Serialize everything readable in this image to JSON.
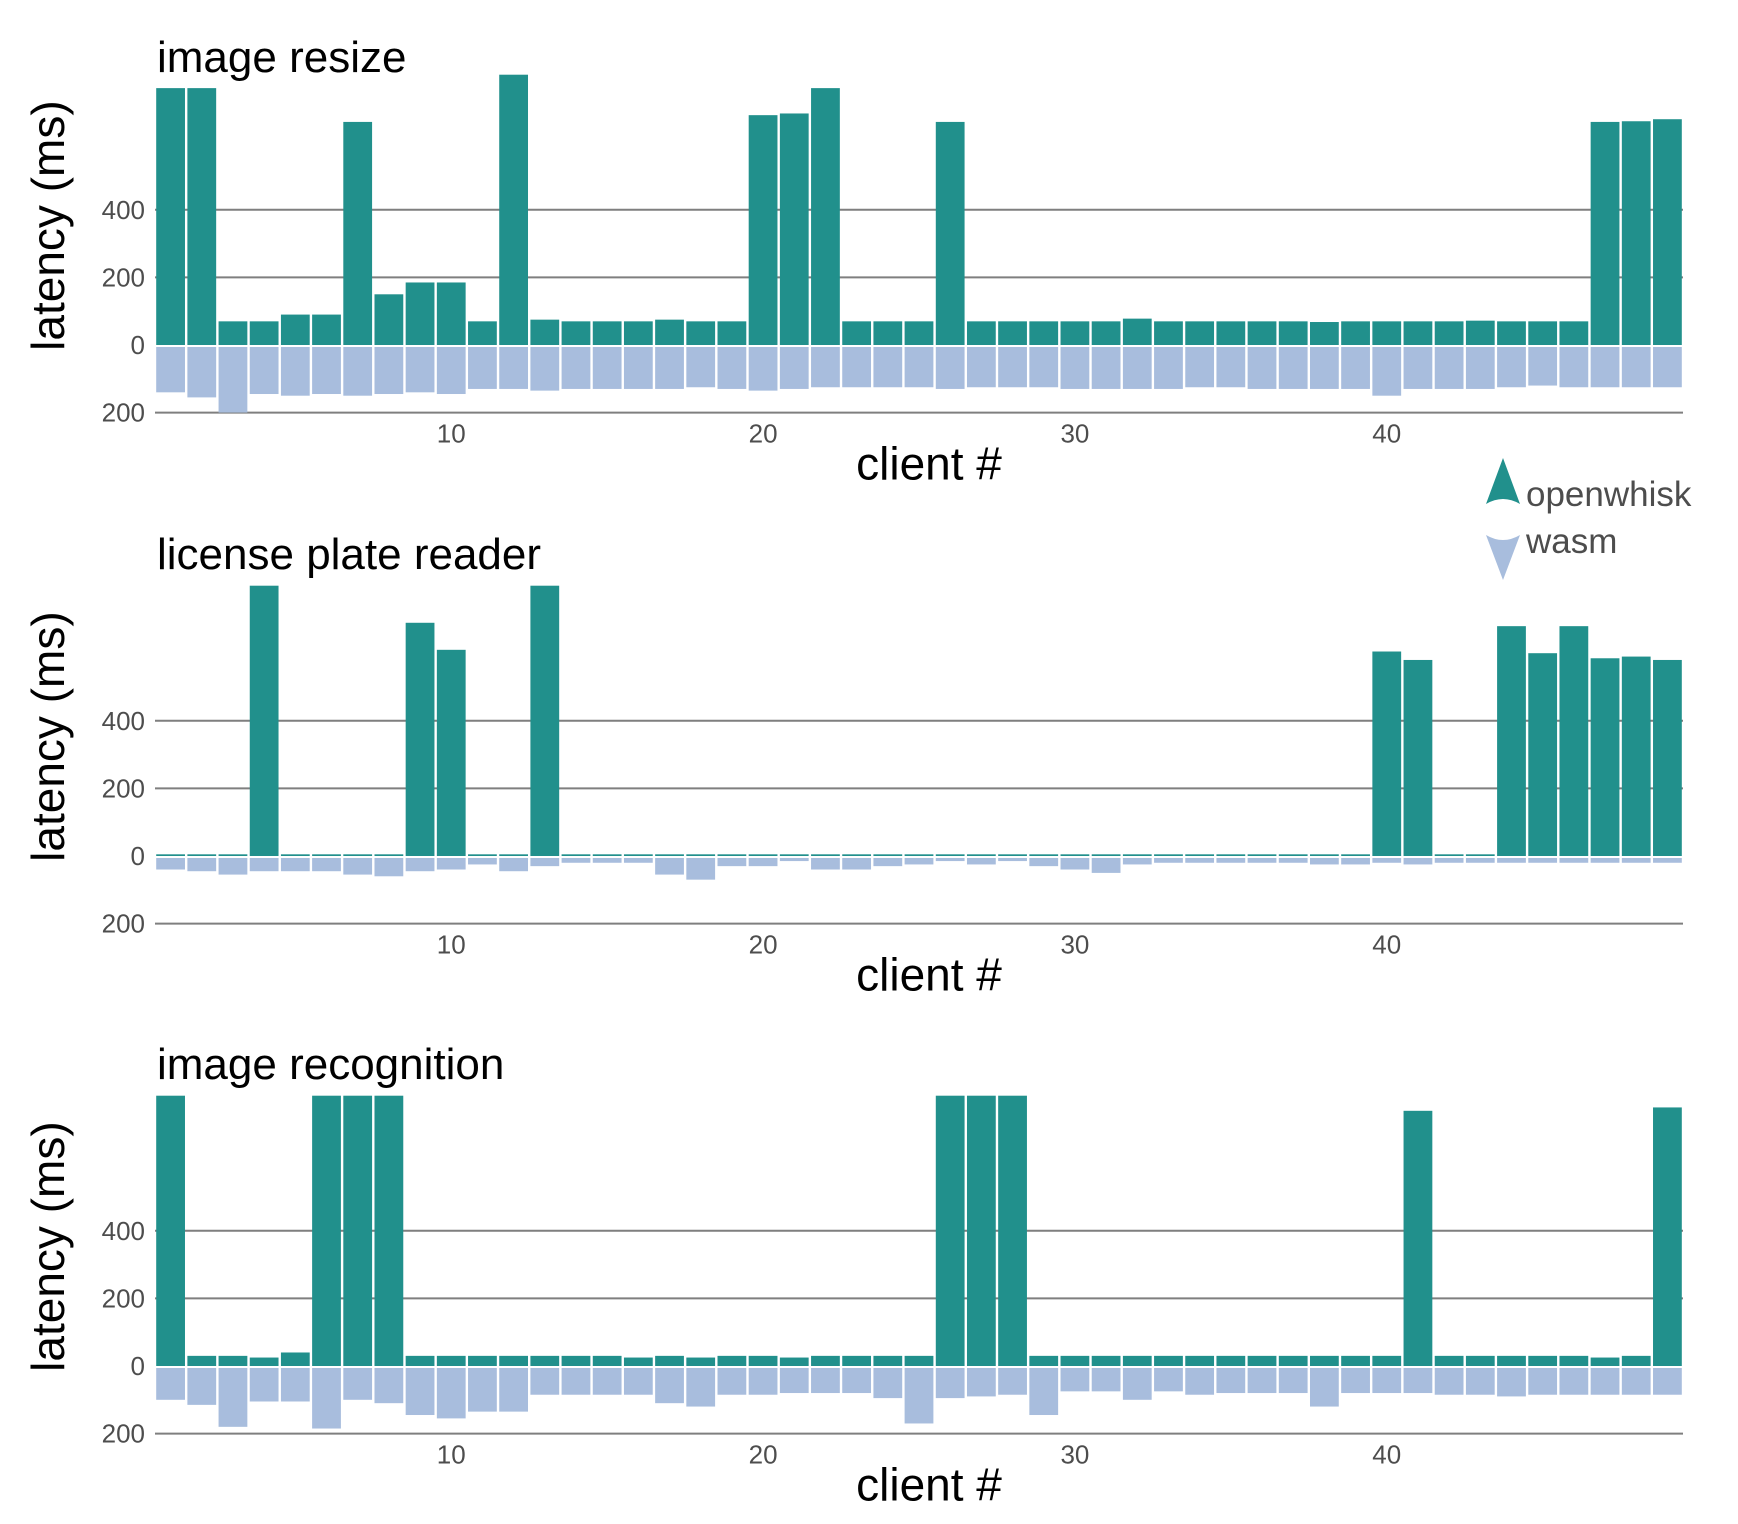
{
  "colors": {
    "openwhisk": "#21908c",
    "wasm": "#a8bddd",
    "grid": "#7f7f7f"
  },
  "legend": {
    "items": [
      {
        "label": "openwhisk",
        "icon": "triangle-up-icon"
      },
      {
        "label": "wasm",
        "icon": "triangle-down-icon"
      }
    ]
  },
  "chart_data": [
    {
      "type": "bar",
      "title": "image resize",
      "xlabel": "client #",
      "ylabel": "latency (ms)",
      "x_ticks": [
        10,
        20,
        30,
        40
      ],
      "y_ticks": [
        {
          "value": 400,
          "label": "400"
        },
        {
          "value": 200,
          "label": "200"
        },
        {
          "value": 0,
          "label": "0"
        },
        {
          "value": -200,
          "label": "200"
        }
      ],
      "ylim": [
        -200,
        800
      ],
      "categories": [
        1,
        2,
        3,
        4,
        5,
        6,
        7,
        8,
        9,
        10,
        11,
        12,
        13,
        14,
        15,
        16,
        17,
        18,
        19,
        20,
        21,
        22,
        23,
        24,
        25,
        26,
        27,
        28,
        29,
        30,
        31,
        32,
        33,
        34,
        35,
        36,
        37,
        38,
        39,
        40,
        41,
        42,
        43,
        44,
        45,
        46,
        47,
        48,
        49
      ],
      "series": [
        {
          "name": "openwhisk",
          "values": [
            760,
            760,
            70,
            70,
            90,
            90,
            660,
            150,
            185,
            185,
            70,
            800,
            75,
            70,
            70,
            70,
            75,
            70,
            70,
            680,
            685,
            760,
            70,
            70,
            70,
            660,
            70,
            70,
            70,
            70,
            70,
            78,
            70,
            70,
            70,
            70,
            70,
            68,
            70,
            70,
            70,
            70,
            72,
            70,
            70,
            70,
            660,
            662,
            668
          ]
        },
        {
          "name": "wasm",
          "values": [
            140,
            155,
            205,
            145,
            150,
            145,
            150,
            145,
            140,
            145,
            130,
            130,
            135,
            130,
            130,
            130,
            130,
            125,
            130,
            135,
            130,
            125,
            125,
            125,
            125,
            130,
            125,
            125,
            125,
            130,
            130,
            130,
            130,
            125,
            125,
            130,
            130,
            130,
            130,
            150,
            130,
            130,
            130,
            125,
            120,
            125,
            125,
            125,
            125
          ]
        }
      ]
    },
    {
      "type": "bar",
      "title": "license plate reader",
      "xlabel": "client #",
      "ylabel": "latency (ms)",
      "x_ticks": [
        10,
        20,
        30,
        40
      ],
      "y_ticks": [
        {
          "value": 400,
          "label": "400"
        },
        {
          "value": 200,
          "label": "200"
        },
        {
          "value": 0,
          "label": "0"
        },
        {
          "value": -200,
          "label": "200"
        }
      ],
      "ylim": [
        -200,
        800
      ],
      "categories": [
        1,
        2,
        3,
        4,
        5,
        6,
        7,
        8,
        9,
        10,
        11,
        12,
        13,
        14,
        15,
        16,
        17,
        18,
        19,
        20,
        21,
        22,
        23,
        24,
        25,
        26,
        27,
        28,
        29,
        30,
        31,
        32,
        33,
        34,
        35,
        36,
        37,
        38,
        39,
        40,
        41,
        42,
        43,
        44,
        45,
        46,
        47,
        48,
        49
      ],
      "series": [
        {
          "name": "openwhisk",
          "values": [
            5,
            5,
            5,
            800,
            5,
            5,
            5,
            5,
            690,
            610,
            5,
            5,
            800,
            5,
            5,
            5,
            5,
            5,
            5,
            5,
            5,
            5,
            5,
            5,
            5,
            5,
            5,
            5,
            5,
            5,
            5,
            5,
            5,
            5,
            5,
            5,
            5,
            5,
            5,
            605,
            580,
            5,
            5,
            680,
            600,
            680,
            585,
            590,
            580
          ]
        },
        {
          "name": "wasm",
          "values": [
            40,
            45,
            55,
            45,
            45,
            45,
            55,
            60,
            45,
            40,
            25,
            45,
            30,
            20,
            20,
            20,
            55,
            70,
            30,
            30,
            15,
            40,
            40,
            30,
            25,
            15,
            25,
            15,
            30,
            40,
            50,
            25,
            20,
            20,
            20,
            20,
            20,
            25,
            25,
            20,
            25,
            20,
            20,
            20,
            20,
            20,
            20,
            20,
            20
          ]
        }
      ]
    },
    {
      "type": "bar",
      "title": "image recognition",
      "xlabel": "client #",
      "ylabel": "latency (ms)",
      "x_ticks": [
        10,
        20,
        30,
        40
      ],
      "y_ticks": [
        {
          "value": 400,
          "label": "400"
        },
        {
          "value": 200,
          "label": "200"
        },
        {
          "value": 0,
          "label": "0"
        },
        {
          "value": -200,
          "label": "200"
        }
      ],
      "ylim": [
        -200,
        800
      ],
      "categories": [
        1,
        2,
        3,
        4,
        5,
        6,
        7,
        8,
        9,
        10,
        11,
        12,
        13,
        14,
        15,
        16,
        17,
        18,
        19,
        20,
        21,
        22,
        23,
        24,
        25,
        26,
        27,
        28,
        29,
        30,
        31,
        32,
        33,
        34,
        35,
        36,
        37,
        38,
        39,
        40,
        41,
        42,
        43,
        44,
        45,
        46,
        47,
        48,
        49
      ],
      "series": [
        {
          "name": "openwhisk",
          "values": [
            800,
            30,
            30,
            25,
            40,
            800,
            800,
            800,
            30,
            30,
            30,
            30,
            30,
            30,
            30,
            25,
            30,
            25,
            30,
            30,
            25,
            30,
            30,
            30,
            30,
            800,
            800,
            800,
            30,
            30,
            30,
            30,
            30,
            30,
            30,
            30,
            30,
            30,
            30,
            30,
            755,
            30,
            30,
            30,
            30,
            30,
            25,
            30,
            765
          ]
        },
        {
          "name": "wasm",
          "values": [
            100,
            115,
            180,
            105,
            105,
            185,
            100,
            110,
            145,
            155,
            135,
            135,
            85,
            85,
            85,
            85,
            110,
            120,
            85,
            85,
            80,
            80,
            80,
            95,
            170,
            95,
            90,
            85,
            145,
            75,
            75,
            100,
            75,
            85,
            80,
            80,
            80,
            120,
            80,
            80,
            80,
            85,
            85,
            90,
            85,
            85,
            85,
            85,
            85
          ]
        }
      ]
    }
  ]
}
